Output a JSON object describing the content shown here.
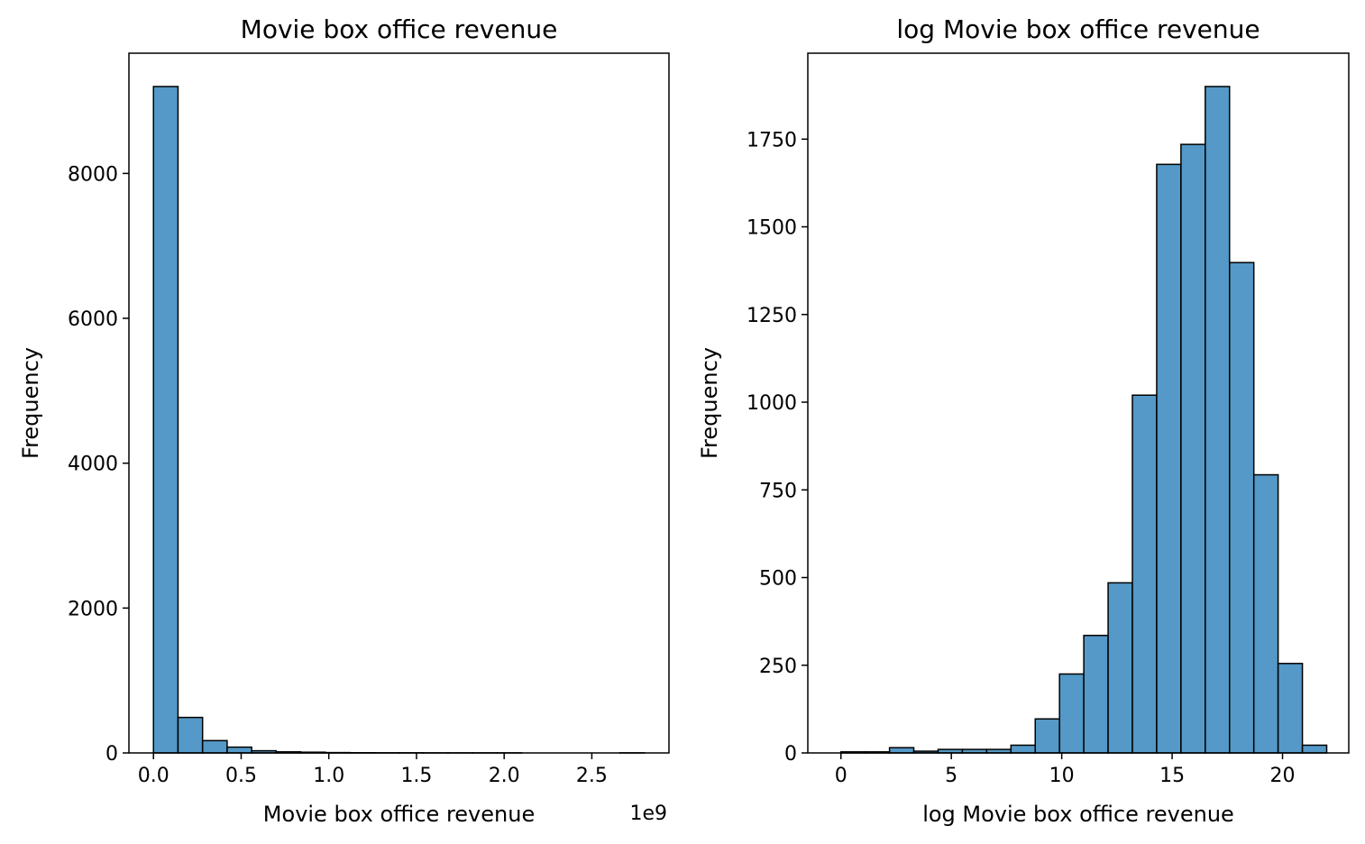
{
  "chart_data": [
    {
      "type": "bar",
      "title": "Movie box office revenue",
      "xlabel": "Movie box office revenue",
      "ylabel": "Frequency",
      "x_offset_label": "1e9",
      "x_ticks": [
        0.0,
        0.5,
        1.0,
        1.5,
        2.0,
        2.5
      ],
      "x_tick_labels": [
        "0.0",
        "0.5",
        "1.0",
        "1.5",
        "2.0",
        "2.5"
      ],
      "y_ticks": [
        0,
        2000,
        4000,
        6000,
        8000
      ],
      "y_tick_labels": [
        "0",
        "2000",
        "4000",
        "6000",
        "8000"
      ],
      "xlim": [
        -0.14,
        2.94
      ],
      "ylim": [
        0,
        9660
      ],
      "bin_edges": [
        0.0,
        0.14,
        0.28,
        0.42,
        0.56,
        0.7,
        0.84,
        0.98,
        1.12,
        1.26,
        1.4,
        1.54,
        1.68,
        1.82,
        1.96,
        2.1,
        2.24,
        2.38,
        2.52,
        2.66,
        2.8
      ],
      "values": [
        9200,
        490,
        170,
        80,
        30,
        15,
        10,
        5,
        3,
        2,
        2,
        1,
        1,
        1,
        1,
        0,
        0,
        0,
        0,
        1
      ],
      "bar_color": "#5499c7",
      "grid": false
    },
    {
      "type": "bar",
      "title": "log Movie box office revenue",
      "xlabel": "log Movie box office revenue",
      "ylabel": "Frequency",
      "x_ticks": [
        0,
        5,
        10,
        15,
        20
      ],
      "x_tick_labels": [
        "0",
        "5",
        "10",
        "15",
        "20"
      ],
      "y_ticks": [
        0,
        250,
        500,
        750,
        1000,
        1250,
        1500,
        1750
      ],
      "y_tick_labels": [
        "0",
        "250",
        "500",
        "750",
        "1000",
        "1250",
        "1500",
        "1750"
      ],
      "xlim": [
        -1.5,
        23.0
      ],
      "ylim": [
        0,
        1995
      ],
      "bin_edges": [
        0.0,
        1.1,
        2.2,
        3.3,
        4.4,
        5.5,
        6.6,
        7.7,
        8.8,
        9.9,
        11.0,
        12.1,
        13.2,
        14.3,
        15.4,
        16.5,
        17.6,
        18.7,
        19.8,
        20.9,
        22.0
      ],
      "values": [
        3,
        3,
        15,
        5,
        10,
        10,
        10,
        22,
        97,
        225,
        335,
        485,
        1020,
        1678,
        1735,
        1900,
        1398,
        793,
        255,
        22
      ],
      "bar_color": "#5499c7",
      "grid": false
    }
  ]
}
